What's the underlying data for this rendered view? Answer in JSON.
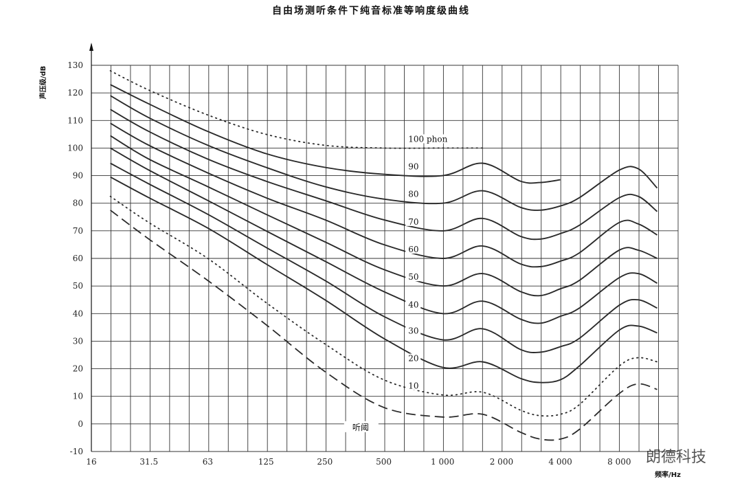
{
  "chart_data": {
    "type": "line",
    "title": "自由场测听条件下纯音标准等响度级曲线",
    "ylabel": "声压级/dB",
    "xlabel": "频率/Hz",
    "xscale": "log",
    "x_tick_labels": [
      "16",
      "31.5",
      "63",
      "125",
      "250",
      "500",
      "1 000",
      "2 000",
      "4 000",
      "8 000"
    ],
    "x_ticks": [
      16,
      31.5,
      63,
      125,
      250,
      500,
      1000,
      2000,
      4000,
      8000
    ],
    "ylim": [
      -10,
      130
    ],
    "y_ticks": [
      -10,
      0,
      10,
      20,
      30,
      40,
      50,
      60,
      70,
      80,
      90,
      100,
      110,
      120,
      130
    ],
    "grid": true,
    "x": [
      20,
      31.5,
      63,
      125,
      250,
      500,
      1000,
      1600,
      2500,
      3150,
      4000,
      5000,
      8000,
      10000,
      12500
    ],
    "series": [
      {
        "name": "100 phon",
        "style": "dotted",
        "values": [
          128,
          121,
          112,
          105,
          101,
          100,
          100,
          100,
          null,
          null,
          null,
          null,
          null,
          null,
          null
        ]
      },
      {
        "name": "90",
        "style": "solid",
        "values": [
          123,
          116,
          106,
          98,
          93,
          90.5,
          90,
          94.5,
          88,
          87.5,
          88.5,
          null,
          null,
          null,
          null
        ]
      },
      {
        "name": "80",
        "style": "solid",
        "values": [
          119,
          111,
          101,
          93,
          86,
          81.5,
          80,
          84.5,
          78.5,
          77.5,
          79,
          82,
          92,
          92.5,
          85.5
        ]
      },
      {
        "name": "70",
        "style": "solid",
        "values": [
          114,
          106,
          96,
          88,
          81,
          74,
          70,
          74.5,
          68,
          67,
          69,
          72,
          82,
          82.5,
          77
        ]
      },
      {
        "name": "60",
        "style": "solid",
        "values": [
          109,
          101,
          91,
          82,
          74,
          65,
          60,
          64.5,
          58,
          57,
          59,
          62,
          73,
          72.5,
          68.5
        ]
      },
      {
        "name": "50",
        "style": "solid",
        "values": [
          104.5,
          96,
          86,
          76,
          66,
          56,
          50,
          54.5,
          48,
          46.5,
          49,
          52,
          63,
          63,
          60
        ]
      },
      {
        "name": "40",
        "style": "solid",
        "values": [
          100,
          92,
          81,
          70,
          59,
          48,
          40,
          44.5,
          38,
          36.5,
          39,
          42,
          53,
          54.5,
          51
        ]
      },
      {
        "name": "30",
        "style": "solid",
        "values": [
          94.5,
          87,
          76,
          64,
          52,
          39,
          30.5,
          34.5,
          27,
          26,
          28,
          31,
          43,
          45,
          42
        ]
      },
      {
        "name": "20",
        "style": "solid",
        "values": [
          89.5,
          82,
          71,
          58,
          45,
          31,
          20.5,
          22.5,
          16.5,
          15,
          16,
          21,
          34,
          35.5,
          33
        ]
      },
      {
        "name": "10",
        "style": "dotted",
        "values": [
          82.5,
          73,
          60,
          44,
          29,
          16,
          10.5,
          11.5,
          5,
          3,
          3.5,
          7,
          21,
          24,
          22.5
        ]
      },
      {
        "name": "听阈",
        "style": "dashed",
        "values": [
          77.5,
          67,
          52,
          36,
          19,
          6,
          2.5,
          3.5,
          -3,
          -5.5,
          -5.5,
          -2,
          11,
          14.5,
          12.5
        ]
      }
    ],
    "annotations": [
      "100 phon",
      "90",
      "80",
      "70",
      "60",
      "50",
      "40",
      "30",
      "20",
      "10",
      "听阈"
    ]
  },
  "watermark": "朗德科技"
}
